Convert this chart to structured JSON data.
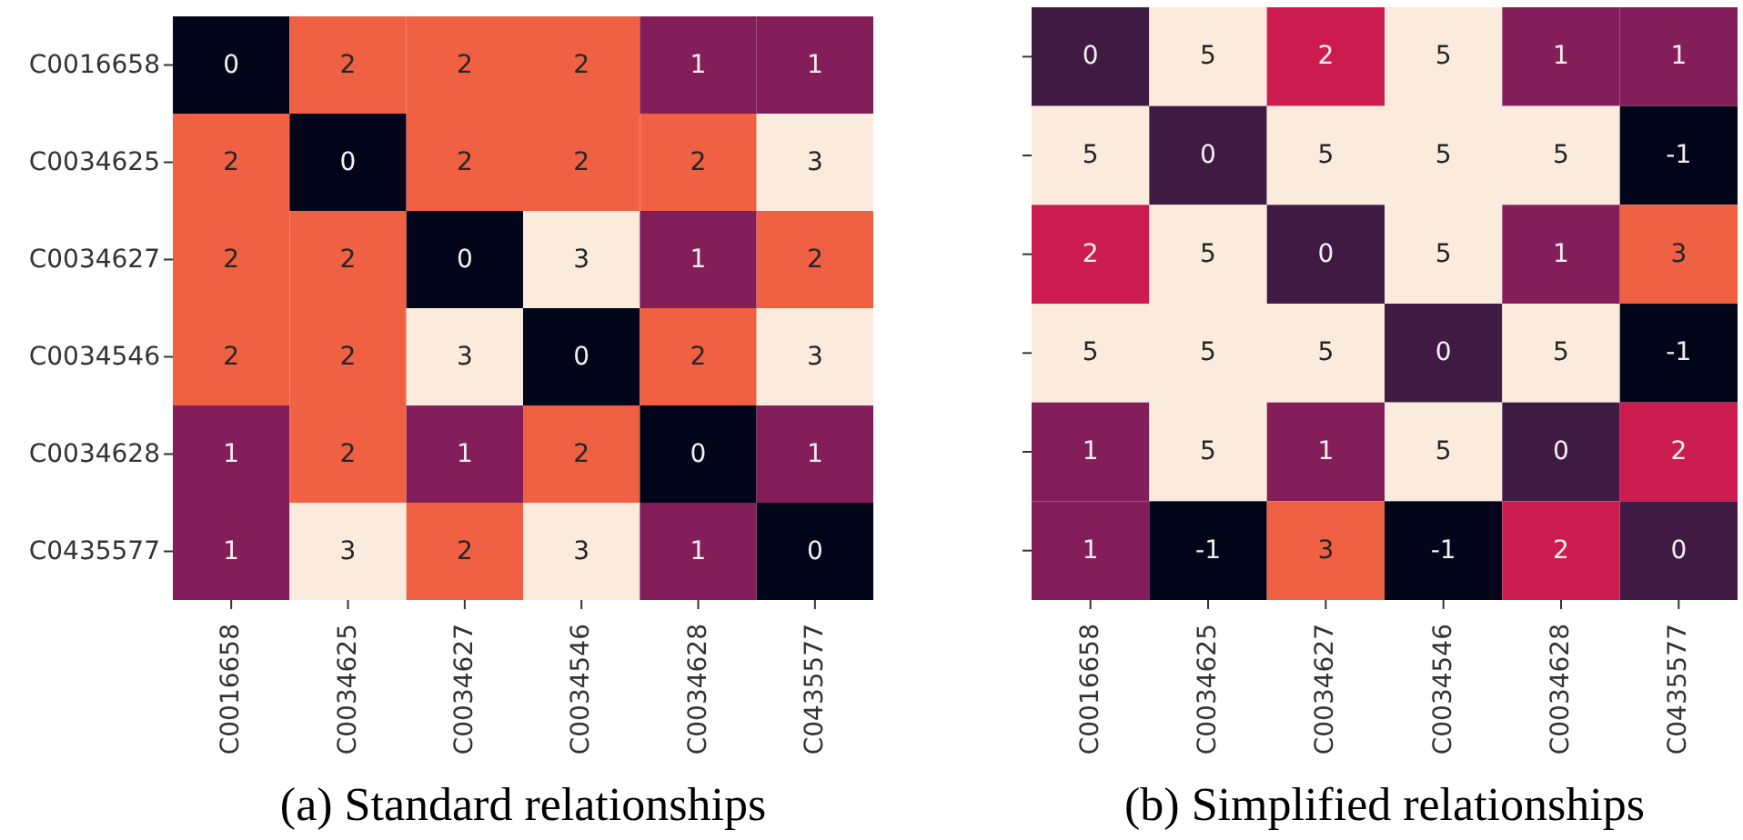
{
  "chart_data": [
    {
      "type": "heatmap",
      "title": "(a) Standard relationships",
      "categories": [
        "C0016658",
        "C0034625",
        "C0034627",
        "C0034546",
        "C0034628",
        "C0435577"
      ],
      "y_categories": [
        "C0016658",
        "C0034625",
        "C0034627",
        "C0034546",
        "C0034628",
        "C0435577"
      ],
      "cells": [
        [
          0,
          2,
          2,
          2,
          1,
          1
        ],
        [
          2,
          0,
          2,
          2,
          2,
          3
        ],
        [
          2,
          2,
          0,
          3,
          1,
          2
        ],
        [
          2,
          2,
          3,
          0,
          2,
          3
        ],
        [
          1,
          2,
          1,
          2,
          0,
          1
        ],
        [
          1,
          3,
          2,
          3,
          1,
          0
        ]
      ],
      "colors": [
        [
          "#03051a",
          "#f06043",
          "#f06043",
          "#f06043",
          "#841e5a",
          "#841e5a"
        ],
        [
          "#f06043",
          "#03051a",
          "#f06043",
          "#f06043",
          "#f06043",
          "#faebdd"
        ],
        [
          "#f06043",
          "#f06043",
          "#03051a",
          "#faebdd",
          "#841e5a",
          "#f06043"
        ],
        [
          "#f06043",
          "#f06043",
          "#faebdd",
          "#03051a",
          "#f06043",
          "#faebdd"
        ],
        [
          "#841e5a",
          "#f06043",
          "#841e5a",
          "#f06043",
          "#03051a",
          "#841e5a"
        ],
        [
          "#841e5a",
          "#faebdd",
          "#f06043",
          "#faebdd",
          "#841e5a",
          "#03051a"
        ]
      ],
      "data_labels": true
    },
    {
      "type": "heatmap",
      "title": "(b) Simplified relationships",
      "categories": [
        "C0016658",
        "C0034625",
        "C0034627",
        "C0034546",
        "C0034628",
        "C0435577"
      ],
      "y_categories": [
        null,
        null,
        null,
        null,
        null,
        null
      ],
      "cells": [
        [
          0,
          5,
          2,
          5,
          1,
          1
        ],
        [
          5,
          0,
          5,
          5,
          5,
          -1
        ],
        [
          2,
          5,
          0,
          5,
          1,
          3
        ],
        [
          5,
          5,
          5,
          0,
          5,
          -1
        ],
        [
          1,
          5,
          1,
          5,
          0,
          2
        ],
        [
          1,
          -1,
          3,
          -1,
          2,
          0
        ]
      ],
      "colors": [
        [
          "#3f1b44",
          "#faebdd",
          "#cb1b4f",
          "#faebdd",
          "#841e5a",
          "#841e5a"
        ],
        [
          "#faebdd",
          "#3f1b44",
          "#faebdd",
          "#faebdd",
          "#faebdd",
          "#03051a"
        ],
        [
          "#cb1b4f",
          "#faebdd",
          "#3f1b44",
          "#faebdd",
          "#841e5a",
          "#f06043"
        ],
        [
          "#faebdd",
          "#faebdd",
          "#faebdd",
          "#3f1b44",
          "#faebdd",
          "#03051a"
        ],
        [
          "#841e5a",
          "#faebdd",
          "#841e5a",
          "#faebdd",
          "#3f1b44",
          "#cb1b4f"
        ],
        [
          "#841e5a",
          "#03051a",
          "#f06043",
          "#03051a",
          "#cb1b4f",
          "#3f1b44"
        ]
      ],
      "data_labels": true,
      "tick_labels": "x"
    }
  ]
}
